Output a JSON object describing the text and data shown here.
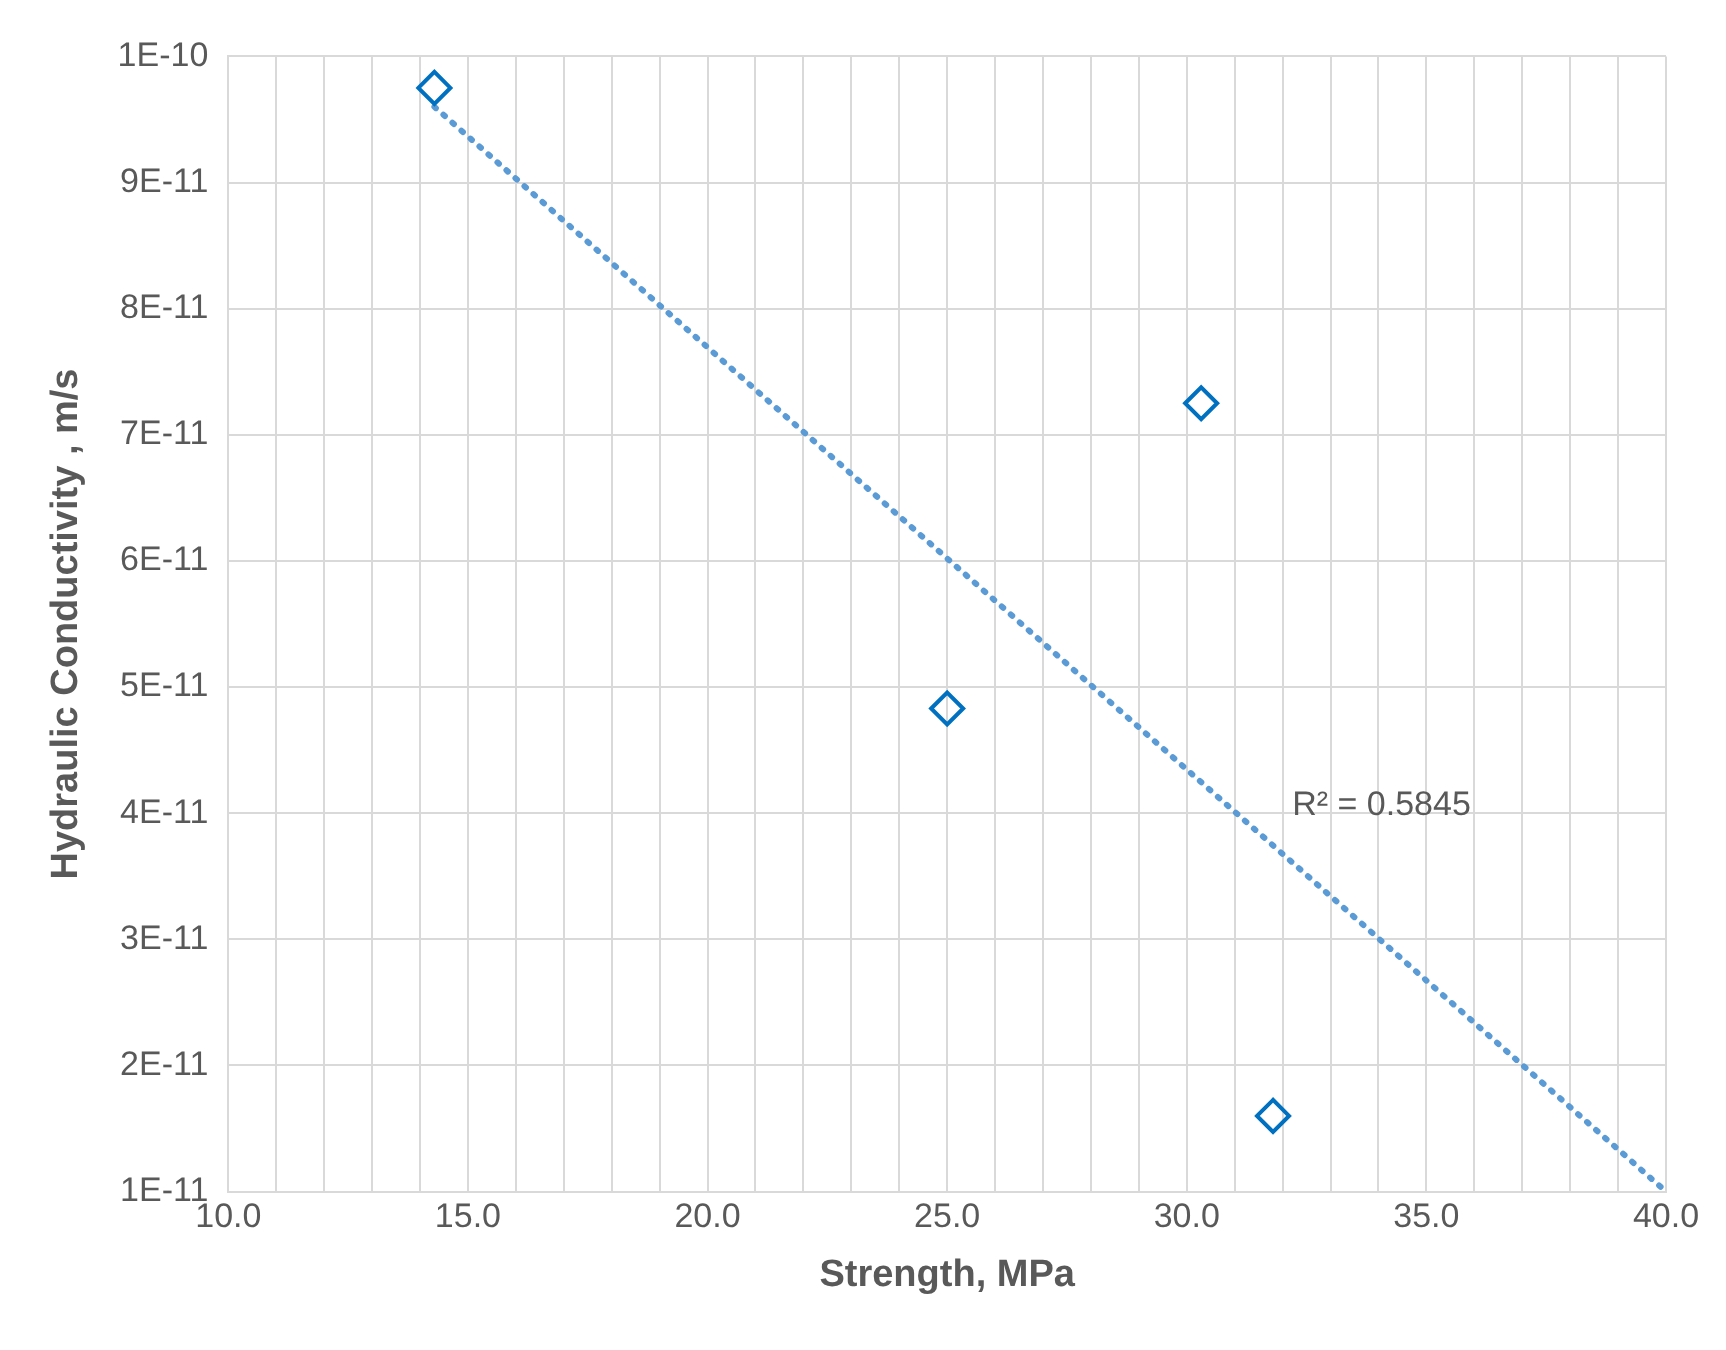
{
  "chart_data": {
    "type": "scatter",
    "xlabel": "Strength, MPa",
    "ylabel": "Hydraulic Conductivity , m/s",
    "xlim": [
      10,
      40
    ],
    "xticks": [
      {
        "value": 10,
        "label": "10.0"
      },
      {
        "value": 11,
        "label": null
      },
      {
        "value": 12,
        "label": null
      },
      {
        "value": 13,
        "label": null
      },
      {
        "value": 14,
        "label": null
      },
      {
        "value": 15,
        "label": "15.0"
      },
      {
        "value": 16,
        "label": null
      },
      {
        "value": 17,
        "label": null
      },
      {
        "value": 18,
        "label": null
      },
      {
        "value": 19,
        "label": null
      },
      {
        "value": 20,
        "label": "20.0"
      },
      {
        "value": 21,
        "label": null
      },
      {
        "value": 22,
        "label": null
      },
      {
        "value": 23,
        "label": null
      },
      {
        "value": 24,
        "label": null
      },
      {
        "value": 25,
        "label": "25.0"
      },
      {
        "value": 26,
        "label": null
      },
      {
        "value": 27,
        "label": null
      },
      {
        "value": 28,
        "label": null
      },
      {
        "value": 29,
        "label": null
      },
      {
        "value": 30,
        "label": "30.0"
      },
      {
        "value": 31,
        "label": null
      },
      {
        "value": 32,
        "label": null
      },
      {
        "value": 33,
        "label": null
      },
      {
        "value": 34,
        "label": null
      },
      {
        "value": 35,
        "label": "35.0"
      },
      {
        "value": 36,
        "label": null
      },
      {
        "value": 37,
        "label": null
      },
      {
        "value": 38,
        "label": null
      },
      {
        "value": 39,
        "label": null
      },
      {
        "value": 40,
        "label": "40.0"
      }
    ],
    "ylim": [
      1e-11,
      1e-10
    ],
    "yticks": [
      {
        "value": 1e-11,
        "label": "1E-11"
      },
      {
        "value": 2e-11,
        "label": "2E-11"
      },
      {
        "value": 3e-11,
        "label": "3E-11"
      },
      {
        "value": 4e-11,
        "label": "4E-11"
      },
      {
        "value": 5e-11,
        "label": "5E-11"
      },
      {
        "value": 6e-11,
        "label": "6E-11"
      },
      {
        "value": 7e-11,
        "label": "7E-11"
      },
      {
        "value": 8e-11,
        "label": "8E-11"
      },
      {
        "value": 9e-11,
        "label": "9E-11"
      },
      {
        "value": 1e-10,
        "label": "1E-10"
      }
    ],
    "grid": true,
    "legend": false,
    "series": [
      {
        "color": "#0070c0",
        "marker": "diamond",
        "x": [
          14.3,
          25,
          30.3,
          31.8
        ],
        "values": [
          9.75e-11,
          4.83e-11,
          7.25e-11,
          1.6e-11
        ]
      },
      {
        "type": "line",
        "color": "#5b9bd5",
        "line_style": "dotted",
        "marker": "none",
        "x": [
          14.3,
          40
        ],
        "values": [
          9.6e-11,
          1e-11
        ]
      }
    ],
    "annotations": [
      "R² = 0.5845"
    ]
  }
}
